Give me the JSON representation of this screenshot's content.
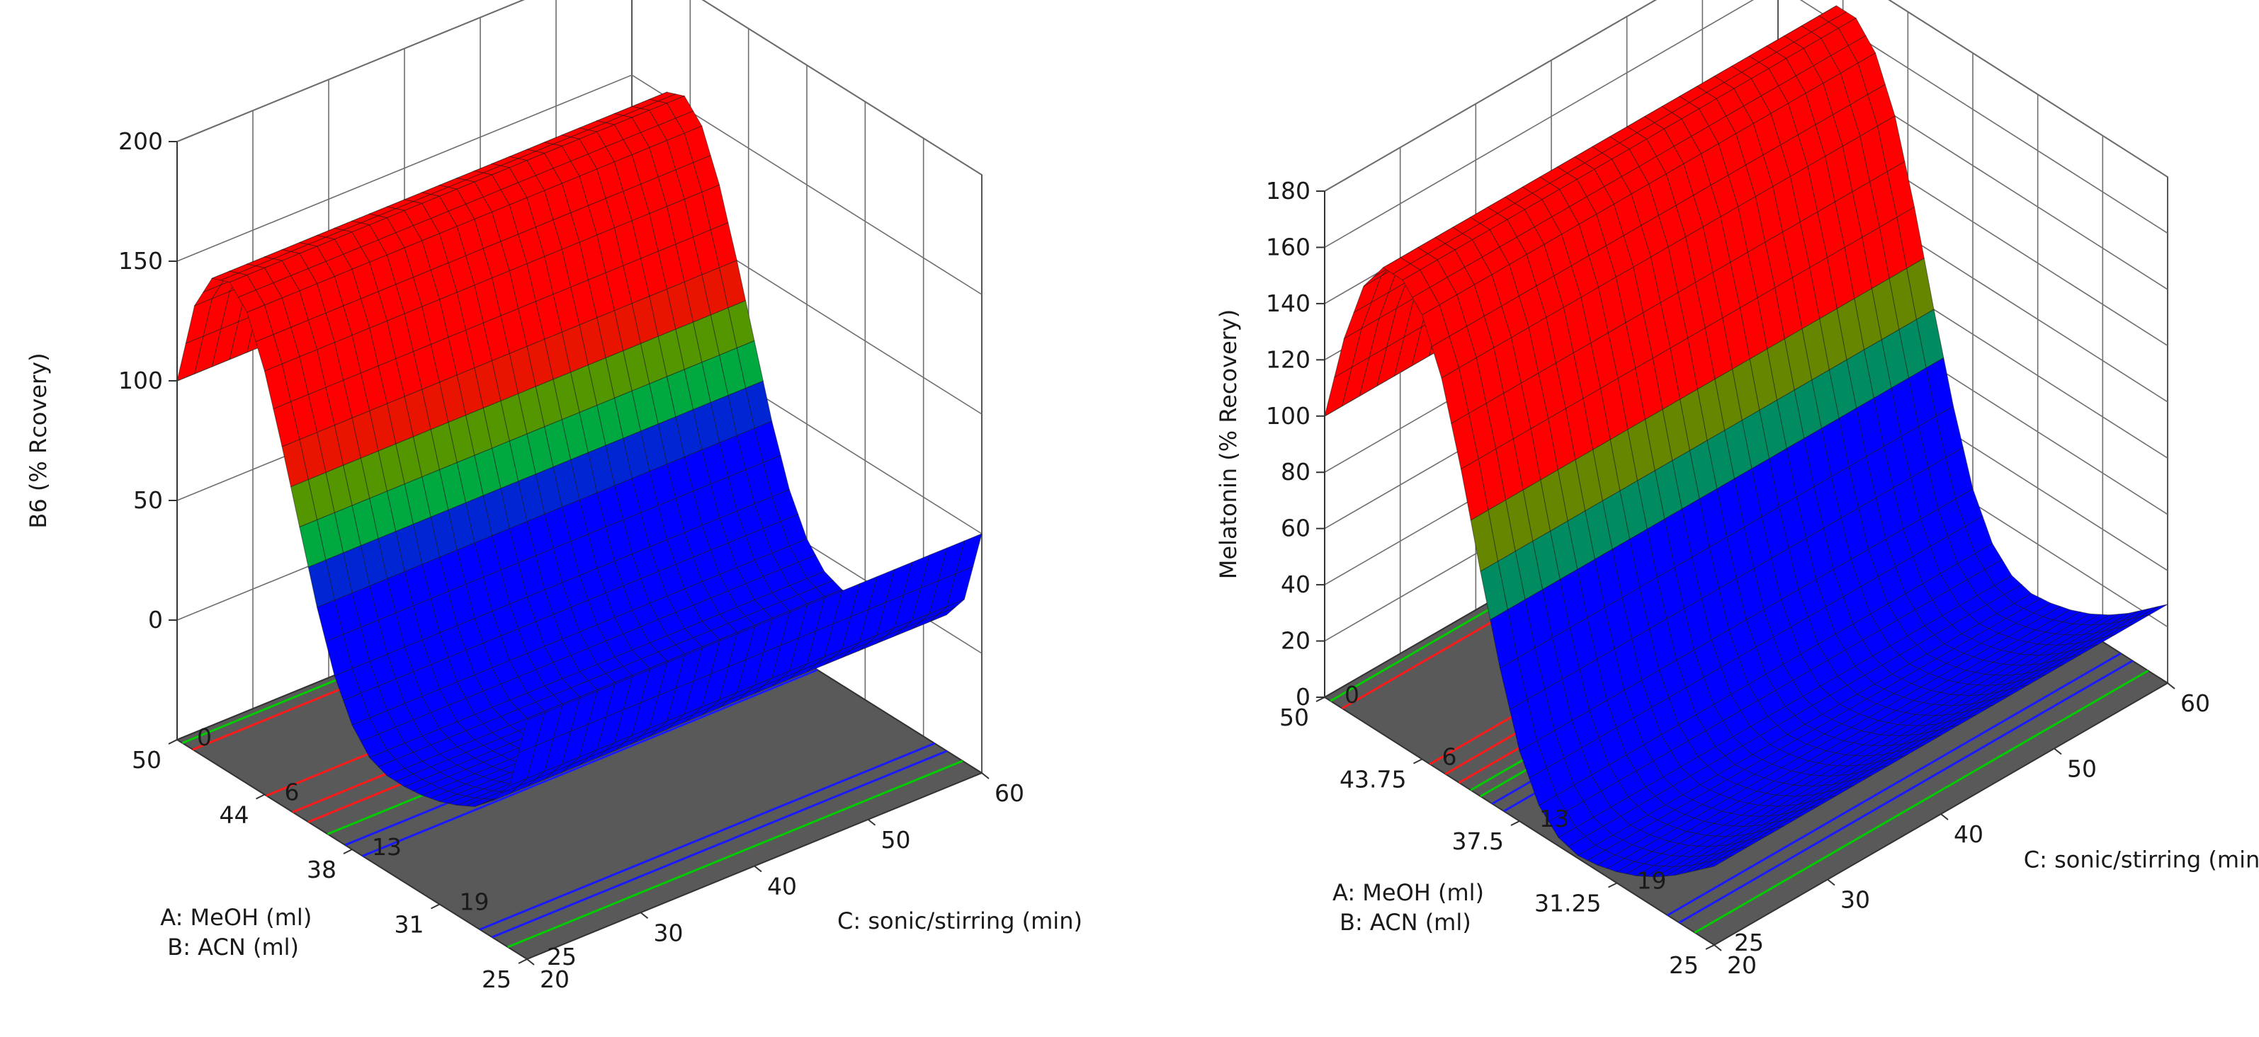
{
  "colors": {
    "floor": "#595959",
    "grid": "#6e6e6e",
    "mesh": "#1a1a1a",
    "high": "#ff0000",
    "mid": "#00e000",
    "low": "#0000ff",
    "contour_red": "#ff1a1a",
    "contour_green": "#00cc00",
    "contour_blue": "#1a1aff"
  },
  "chart_data": [
    {
      "type": "surface3d",
      "title": "",
      "zlabel": "B6 (% Rcovery)",
      "z_ticks": [
        "0",
        "50",
        "100",
        "150",
        "200"
      ],
      "z_tick_values": [
        0,
        50,
        100,
        150,
        200
      ],
      "zlim": [
        -50,
        200
      ],
      "xlabel": "C: sonic/stirring (min)",
      "x_ticks": [
        "20",
        "30",
        "40",
        "50",
        "60"
      ],
      "x_tick_values": [
        20,
        30,
        40,
        50,
        60
      ],
      "xlim": [
        20,
        60
      ],
      "ylabel_a": "A: MeOH (ml)",
      "ylabel_b": "B: ACN (ml)",
      "y_ticks_a": [
        "50",
        "44",
        "38",
        "31",
        "25"
      ],
      "y_ticks_b": [
        "0",
        "6",
        "13",
        "19",
        "25"
      ],
      "profile": {
        "y": [
          0,
          0.05,
          0.1,
          0.15,
          0.2,
          0.25,
          0.3,
          0.35,
          0.4,
          0.45,
          0.5,
          0.55,
          0.6,
          0.65,
          0.7,
          0.75,
          0.8,
          0.85,
          0.9,
          0.95,
          1
        ],
        "z": [
          100,
          136,
          152,
          155,
          147,
          127,
          100,
          71,
          42,
          18,
          2,
          -7,
          -10,
          -10,
          -9,
          -7,
          -4,
          0,
          7,
          18,
          50
        ]
      },
      "color_thresholds": {
        "blue_below": 45,
        "red_above": 95
      },
      "contour_lines": [
        {
          "color": "green",
          "y": 0.015
        },
        {
          "color": "red",
          "y": 0.045
        },
        {
          "color": "red",
          "y": 0.255
        },
        {
          "color": "red",
          "y": 0.33
        },
        {
          "color": "red",
          "y": 0.375
        },
        {
          "color": "green",
          "y": 0.43
        },
        {
          "color": "blue",
          "y": 0.48
        },
        {
          "color": "blue",
          "y": 0.53
        },
        {
          "color": "blue",
          "y": 0.865
        },
        {
          "color": "blue",
          "y": 0.9
        },
        {
          "color": "green",
          "y": 0.945
        }
      ]
    },
    {
      "type": "surface3d",
      "title": "",
      "zlabel": "Melatonin (% Recovery)",
      "z_ticks": [
        "0",
        "20",
        "40",
        "60",
        "80",
        "100",
        "120",
        "140",
        "160",
        "180"
      ],
      "z_tick_values": [
        0,
        20,
        40,
        60,
        80,
        100,
        120,
        140,
        160,
        180
      ],
      "zlim": [
        0,
        180
      ],
      "xlabel": "C: sonic/stirring (min)",
      "x_ticks": [
        "20",
        "30",
        "40",
        "50",
        "60"
      ],
      "x_tick_values": [
        20,
        30,
        40,
        50,
        60
      ],
      "xlim": [
        20,
        60
      ],
      "ylabel_a": "A: MeOH (ml)",
      "ylabel_b": "B: ACN (ml)",
      "y_ticks_a": [
        "50",
        "43.75",
        "37.5",
        "31.25",
        "25"
      ],
      "y_ticks_b": [
        "0",
        "6",
        "13",
        "19",
        "25"
      ],
      "profile": {
        "y": [
          0,
          0.05,
          0.1,
          0.15,
          0.2,
          0.25,
          0.3,
          0.35,
          0.4,
          0.45,
          0.5,
          0.55,
          0.6,
          0.65,
          0.7,
          0.75,
          0.8,
          0.85,
          0.9,
          0.95,
          1
        ],
        "z": [
          100,
          132,
          155,
          166,
          166,
          158,
          140,
          112,
          80,
          50,
          25,
          10,
          3,
          1,
          2,
          4,
          7,
          11,
          16,
          22,
          28
        ]
      },
      "color_thresholds": {
        "blue_below": 60,
        "red_above": 100
      },
      "contour_lines": [
        {
          "color": "green",
          "y": 0.015
        },
        {
          "color": "red",
          "y": 0.045
        },
        {
          "color": "red",
          "y": 0.27
        },
        {
          "color": "red",
          "y": 0.31
        },
        {
          "color": "red",
          "y": 0.345
        },
        {
          "color": "green",
          "y": 0.375
        },
        {
          "color": "green",
          "y": 0.4
        },
        {
          "color": "blue",
          "y": 0.43
        },
        {
          "color": "blue",
          "y": 0.46
        },
        {
          "color": "blue",
          "y": 0.88
        },
        {
          "color": "blue",
          "y": 0.91
        },
        {
          "color": "green",
          "y": 0.95
        }
      ]
    }
  ]
}
